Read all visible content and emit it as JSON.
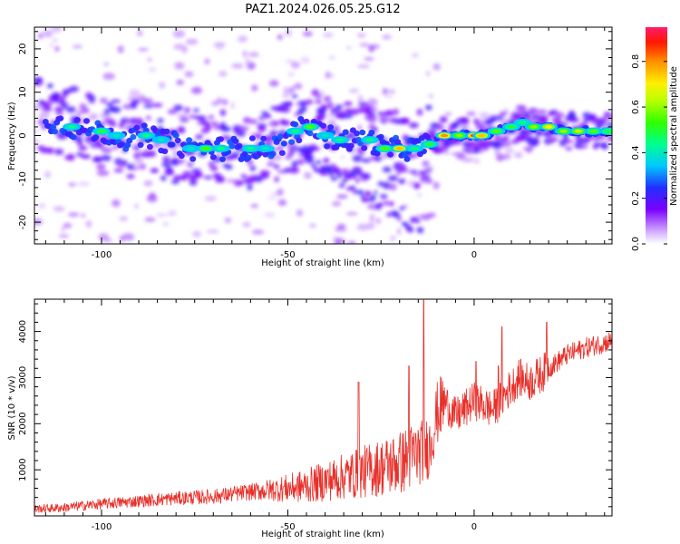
{
  "title": "PAZ1.2024.026.05.25.G12",
  "chart_data": [
    {
      "type": "heatmap",
      "name": "spectrogram",
      "xlabel": "Height of straight line (km)",
      "ylabel": "Frequency (Hz)",
      "xlim": [
        -118,
        37
      ],
      "ylim": [
        -25,
        25
      ],
      "x_ticks": [
        -100,
        -50,
        0
      ],
      "y_ticks": [
        -20,
        -10,
        0,
        10,
        20
      ],
      "colorbar": {
        "label": "Normalized spectral amplitude",
        "range": [
          0.0,
          0.95
        ],
        "ticks": [
          "0.0",
          "0.2",
          "0.4",
          "0.6",
          "0.8"
        ]
      },
      "ridge": {
        "note_values": "dominant frequency ridge (x km, y Hz, amplitude 0-1)",
        "points": [
          [
            -112,
            3,
            0.3
          ],
          [
            -108,
            2,
            0.45
          ],
          [
            -104,
            1,
            0.35
          ],
          [
            -100,
            1,
            0.5
          ],
          [
            -96,
            0,
            0.4
          ],
          [
            -92,
            -1,
            0.35
          ],
          [
            -88,
            0,
            0.45
          ],
          [
            -84,
            -1,
            0.4
          ],
          [
            -80,
            -2,
            0.35
          ],
          [
            -76,
            -3,
            0.4
          ],
          [
            -72,
            -3,
            0.55
          ],
          [
            -68,
            -3,
            0.45
          ],
          [
            -64,
            -3,
            0.35
          ],
          [
            -60,
            -3,
            0.45
          ],
          [
            -56,
            -3,
            0.4
          ],
          [
            -52,
            -2,
            0.35
          ],
          [
            -48,
            1,
            0.45
          ],
          [
            -44,
            2,
            0.55
          ],
          [
            -40,
            0,
            0.4
          ],
          [
            -36,
            -1,
            0.45
          ],
          [
            -32,
            -1,
            0.35
          ],
          [
            -28,
            -1,
            0.45
          ],
          [
            -24,
            -3,
            0.55
          ],
          [
            -20,
            -3,
            0.75
          ],
          [
            -16,
            -3,
            0.45
          ],
          [
            -12,
            -2,
            0.5
          ],
          [
            -8,
            0,
            0.8
          ],
          [
            -4,
            0,
            0.6
          ],
          [
            0,
            0,
            0.85
          ],
          [
            2,
            0,
            0.75
          ],
          [
            6,
            1,
            0.55
          ],
          [
            10,
            2,
            0.5
          ],
          [
            13,
            3,
            0.45
          ],
          [
            16,
            2,
            0.6
          ],
          [
            20,
            2,
            0.7
          ],
          [
            24,
            1,
            0.6
          ],
          [
            28,
            1,
            0.65
          ],
          [
            32,
            1,
            0.55
          ],
          [
            36,
            1,
            0.5
          ]
        ]
      }
    },
    {
      "type": "line",
      "name": "snr",
      "xlabel": "Height of straight line (km)",
      "ylabel": "SNR (10 * v/v)",
      "xlim": [
        -118,
        37
      ],
      "ylim": [
        0,
        4700
      ],
      "x_ticks": [
        -100,
        -50,
        0
      ],
      "y_ticks": [
        1000,
        2000,
        3000,
        4000
      ],
      "color": "#e8302a",
      "x": [
        -118,
        -110,
        -100,
        -90,
        -80,
        -70,
        -60,
        -50,
        -45,
        -40,
        -35,
        -30,
        -25,
        -20,
        -15,
        -12,
        -10,
        -8,
        -5,
        -2,
        0,
        5,
        8,
        10,
        12,
        15,
        20,
        25,
        30,
        37
      ],
      "y": [
        150,
        180,
        260,
        320,
        380,
        420,
        520,
        600,
        650,
        750,
        850,
        950,
        1050,
        1150,
        1350,
        1500,
        2200,
        2500,
        2150,
        2350,
        2500,
        2300,
        2600,
        2800,
        3000,
        2900,
        3200,
        3500,
        3650,
        3800
      ],
      "peaks": [
        {
          "x": -13.5,
          "y": 4680
        },
        {
          "x": 7.5,
          "y": 4100
        },
        {
          "x": 19.5,
          "y": 4200
        },
        {
          "x": 0.5,
          "y": 3350
        },
        {
          "x": 6.5,
          "y": 3250
        },
        {
          "x": -17.5,
          "y": 3250
        },
        {
          "x": -31,
          "y": 2900
        }
      ]
    }
  ]
}
